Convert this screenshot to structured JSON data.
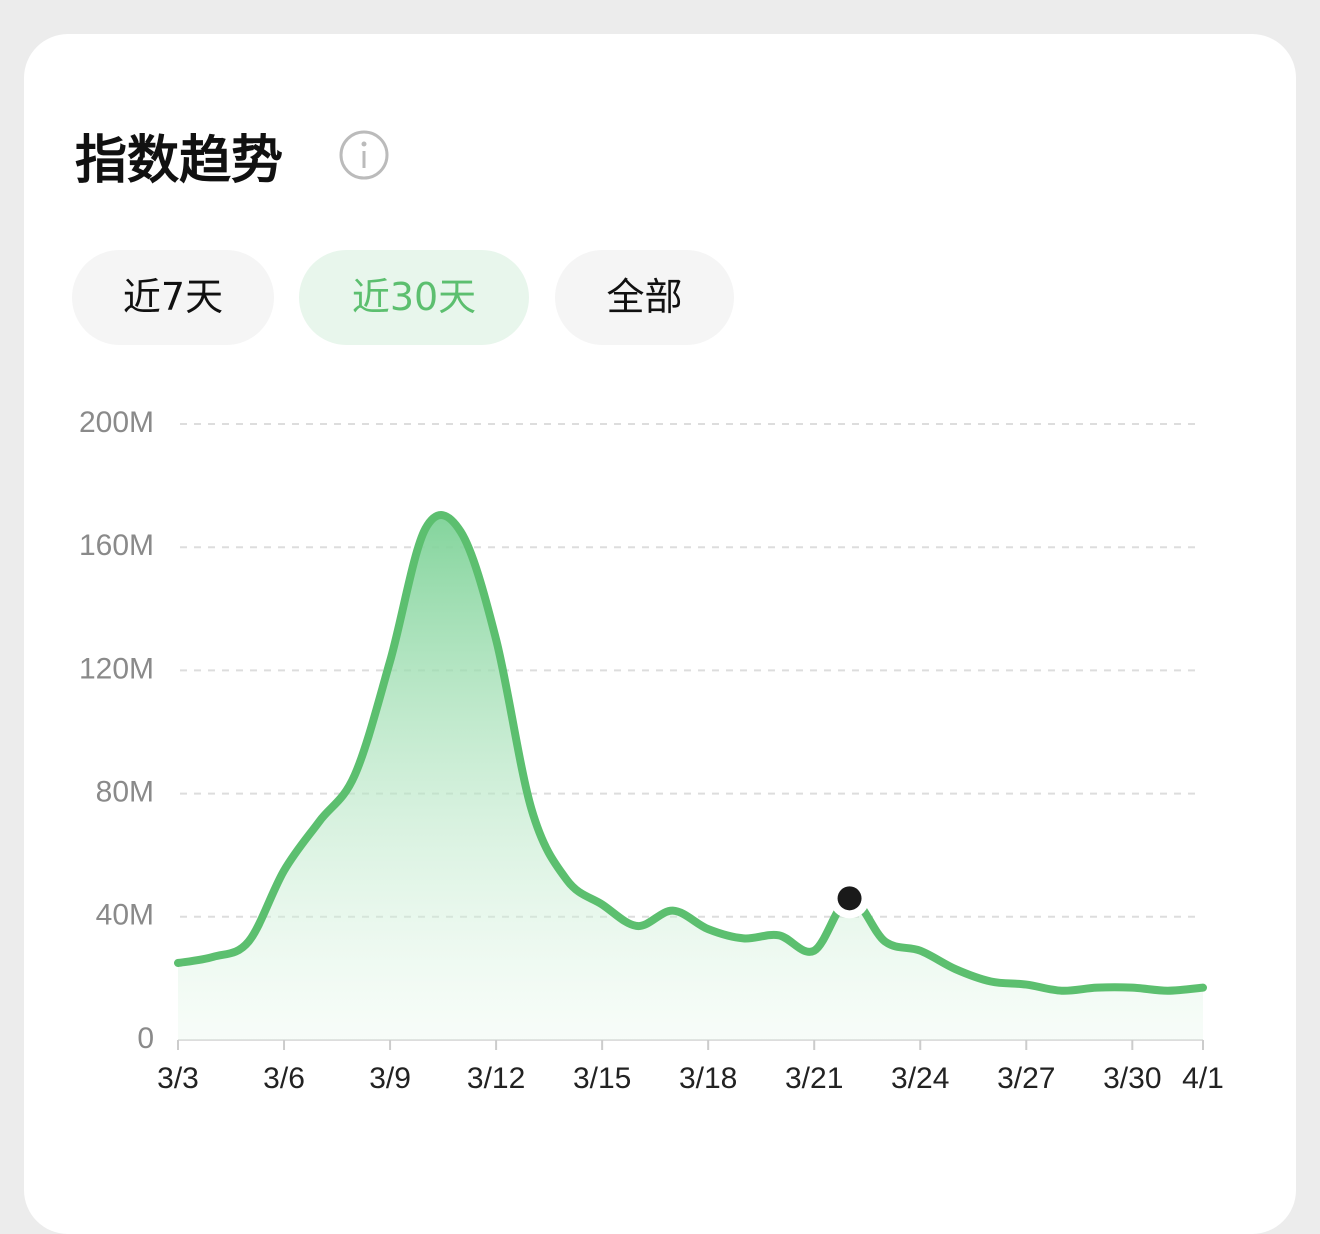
{
  "header": {
    "title": "指数趋势"
  },
  "tabs": [
    {
      "label": "近7天"
    },
    {
      "label": "近30天",
      "active": true
    },
    {
      "label": "全部"
    }
  ],
  "chart_data": {
    "type": "area",
    "categories": [
      "3/3",
      null,
      null,
      "3/6",
      null,
      null,
      "3/9",
      null,
      null,
      "3/12",
      null,
      null,
      "3/15",
      null,
      null,
      "3/18",
      null,
      null,
      "3/21",
      null,
      null,
      "3/24",
      null,
      null,
      "3/27",
      null,
      null,
      "3/30",
      null,
      "4/1"
    ],
    "values": [
      25,
      27,
      32,
      55,
      71,
      86,
      123,
      166,
      165,
      130,
      75,
      52,
      44,
      37,
      42,
      36,
      33,
      34,
      29,
      46,
      32,
      29,
      23,
      19,
      18,
      16,
      17,
      17,
      16,
      17
    ],
    "color": "#5cbf6f",
    "marker_index": 19,
    "ylim": [
      0,
      200
    ],
    "yticks": [
      0,
      {
        "value": 40,
        "label": "40M"
      },
      {
        "value": 80,
        "label": "80M"
      },
      {
        "value": 120,
        "label": "120M"
      },
      {
        "value": 160,
        "label": "160M"
      },
      {
        "value": 200,
        "label": "200M"
      }
    ],
    "grid": true
  }
}
